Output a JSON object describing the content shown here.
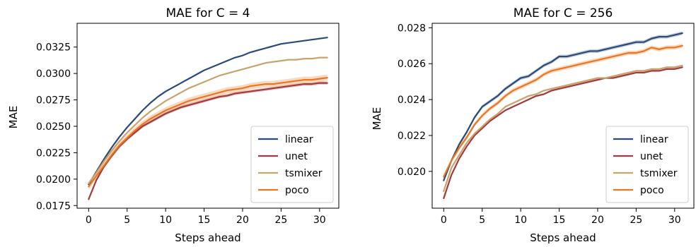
{
  "chart_data": [
    {
      "type": "line",
      "title": "MAE for C = 4",
      "xlabel": "Steps ahead",
      "ylabel": "MAE",
      "xlim": [
        -1.5,
        32.5
      ],
      "ylim": [
        0.01725,
        0.03475
      ],
      "xticks": [
        0,
        5,
        10,
        15,
        20,
        25,
        30
      ],
      "xtick_labels": [
        "0",
        "5",
        "10",
        "15",
        "20",
        "25",
        "30"
      ],
      "yticks": [
        0.0175,
        0.02,
        0.0225,
        0.025,
        0.0275,
        0.03,
        0.0325
      ],
      "ytick_labels": [
        "0.0175",
        "0.0200",
        "0.0225",
        "0.0250",
        "0.0275",
        "0.0300",
        "0.0325"
      ],
      "legend_position": "lower-right",
      "x": [
        0,
        1,
        2,
        3,
        4,
        5,
        6,
        7,
        8,
        9,
        10,
        11,
        12,
        13,
        14,
        15,
        16,
        17,
        18,
        19,
        20,
        21,
        22,
        23,
        24,
        25,
        26,
        27,
        28,
        29,
        30,
        31
      ],
      "series": [
        {
          "name": "linear",
          "color": "#2b4a78",
          "band": 5e-05,
          "values": [
            0.0195,
            0.0207,
            0.0219,
            0.023,
            0.024,
            0.0249,
            0.0257,
            0.0265,
            0.0272,
            0.0278,
            0.0283,
            0.0287,
            0.0291,
            0.0295,
            0.0299,
            0.0303,
            0.0306,
            0.0309,
            0.0312,
            0.0315,
            0.0317,
            0.032,
            0.0322,
            0.0324,
            0.0326,
            0.0328,
            0.0329,
            0.033,
            0.0331,
            0.0332,
            0.0333,
            0.0334
          ]
        },
        {
          "name": "unet",
          "color": "#a23b3b",
          "band": 0.00015,
          "values": [
            0.0181,
            0.0199,
            0.0212,
            0.0222,
            0.0231,
            0.0238,
            0.0244,
            0.025,
            0.0254,
            0.0258,
            0.0262,
            0.0265,
            0.0268,
            0.027,
            0.0272,
            0.0274,
            0.0276,
            0.0278,
            0.0279,
            0.0281,
            0.0282,
            0.0283,
            0.0284,
            0.0285,
            0.0286,
            0.0287,
            0.0288,
            0.0289,
            0.029,
            0.029,
            0.0291,
            0.0291
          ]
        },
        {
          "name": "tsmixer",
          "color": "#c8a36e",
          "band": 5e-05,
          "values": [
            0.0196,
            0.0206,
            0.0217,
            0.0227,
            0.0236,
            0.0244,
            0.0251,
            0.0258,
            0.0264,
            0.0269,
            0.0274,
            0.0278,
            0.0282,
            0.0286,
            0.0289,
            0.0292,
            0.0295,
            0.0298,
            0.03,
            0.0302,
            0.0304,
            0.0306,
            0.0308,
            0.031,
            0.0311,
            0.0312,
            0.0313,
            0.0313,
            0.0314,
            0.0314,
            0.0315,
            0.0315
          ]
        },
        {
          "name": "poco",
          "color": "#e87722",
          "band": 0.0003,
          "values": [
            0.0193,
            0.0203,
            0.0213,
            0.0223,
            0.0232,
            0.0239,
            0.0246,
            0.0252,
            0.0257,
            0.0261,
            0.0265,
            0.0268,
            0.0271,
            0.0274,
            0.0276,
            0.0278,
            0.028,
            0.0282,
            0.0284,
            0.0285,
            0.0286,
            0.0288,
            0.0289,
            0.029,
            0.029,
            0.0291,
            0.0292,
            0.0293,
            0.0294,
            0.0294,
            0.0295,
            0.0296
          ]
        }
      ]
    },
    {
      "type": "line",
      "title": "MAE for C = 256",
      "xlabel": "Steps ahead",
      "ylabel": "MAE",
      "xlim": [
        -1.5,
        32.5
      ],
      "ylim": [
        0.01795,
        0.02825
      ],
      "xticks": [
        0,
        5,
        10,
        15,
        20,
        25,
        30
      ],
      "xtick_labels": [
        "0",
        "5",
        "10",
        "15",
        "20",
        "25",
        "30"
      ],
      "yticks": [
        0.02,
        0.022,
        0.024,
        0.026,
        0.028
      ],
      "ytick_labels": [
        "0.020",
        "0.022",
        "0.024",
        "0.026",
        "0.028"
      ],
      "legend_position": "lower-right",
      "x": [
        0,
        1,
        2,
        3,
        4,
        5,
        6,
        7,
        8,
        9,
        10,
        11,
        12,
        13,
        14,
        15,
        16,
        17,
        18,
        19,
        20,
        21,
        22,
        23,
        24,
        25,
        26,
        27,
        28,
        29,
        30,
        31
      ],
      "series": [
        {
          "name": "linear",
          "color": "#2b4a78",
          "band": 0.0001,
          "values": [
            0.0195,
            0.0206,
            0.0215,
            0.0222,
            0.023,
            0.0236,
            0.0239,
            0.0242,
            0.0246,
            0.0249,
            0.0252,
            0.0253,
            0.0256,
            0.0259,
            0.0261,
            0.0264,
            0.0264,
            0.0265,
            0.0266,
            0.0267,
            0.0267,
            0.0268,
            0.0269,
            0.027,
            0.0271,
            0.0272,
            0.0272,
            0.0274,
            0.0275,
            0.0275,
            0.0276,
            0.0277
          ]
        },
        {
          "name": "unet",
          "color": "#a23b3b",
          "band": 5e-05,
          "values": [
            0.0185,
            0.0198,
            0.0207,
            0.0214,
            0.022,
            0.0224,
            0.0228,
            0.0231,
            0.0234,
            0.0236,
            0.0238,
            0.024,
            0.0242,
            0.0243,
            0.0245,
            0.0246,
            0.0247,
            0.0248,
            0.0249,
            0.025,
            0.0251,
            0.0252,
            0.0252,
            0.0253,
            0.0254,
            0.0255,
            0.0255,
            0.0256,
            0.0256,
            0.0257,
            0.0257,
            0.0258
          ]
        },
        {
          "name": "tsmixer",
          "color": "#c8a36e",
          "band": 5e-05,
          "values": [
            0.0189,
            0.0202,
            0.0209,
            0.0216,
            0.0221,
            0.0225,
            0.0229,
            0.0232,
            0.0236,
            0.0238,
            0.024,
            0.0242,
            0.0243,
            0.0245,
            0.0246,
            0.0247,
            0.0248,
            0.0249,
            0.025,
            0.0251,
            0.0252,
            0.0252,
            0.0253,
            0.0254,
            0.0255,
            0.0256,
            0.0256,
            0.0257,
            0.0257,
            0.0258,
            0.0258,
            0.0259
          ]
        },
        {
          "name": "poco",
          "color": "#e87722",
          "band": 0.00012,
          "values": [
            0.0197,
            0.0206,
            0.0213,
            0.0219,
            0.0226,
            0.0231,
            0.0235,
            0.0238,
            0.0242,
            0.0245,
            0.0247,
            0.0249,
            0.0251,
            0.0254,
            0.0256,
            0.0257,
            0.0258,
            0.0259,
            0.026,
            0.0261,
            0.0262,
            0.0263,
            0.0264,
            0.0265,
            0.0266,
            0.0266,
            0.0267,
            0.0269,
            0.0268,
            0.0269,
            0.0269,
            0.027
          ]
        }
      ]
    }
  ]
}
